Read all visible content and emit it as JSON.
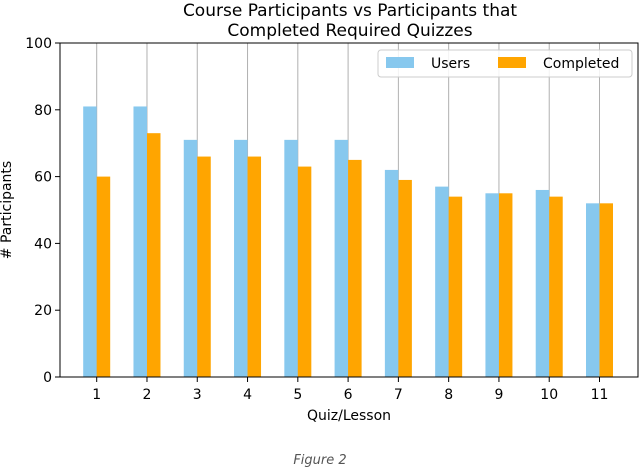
{
  "caption": "Figure 2",
  "chart_data": {
    "type": "bar",
    "title": "Course Participants vs Participants that\nCompleted Required Quizzes",
    "xlabel": "Quiz/Lesson",
    "ylabel": "# Participants",
    "categories": [
      "1",
      "2",
      "3",
      "4",
      "5",
      "6",
      "7",
      "8",
      "9",
      "10",
      "11"
    ],
    "series": [
      {
        "name": "Users",
        "color": "#87c8ee",
        "values": [
          81,
          81,
          71,
          71,
          71,
          71,
          62,
          57,
          55,
          56,
          52
        ]
      },
      {
        "name": "Completed",
        "color": "#ffa500",
        "values": [
          60,
          73,
          66,
          66,
          63,
          65,
          59,
          54,
          55,
          54,
          52
        ]
      }
    ],
    "ylim": [
      0,
      100
    ],
    "yticks": [
      0,
      20,
      40,
      60,
      80,
      100
    ],
    "grid": "x",
    "legend": "top-right"
  }
}
